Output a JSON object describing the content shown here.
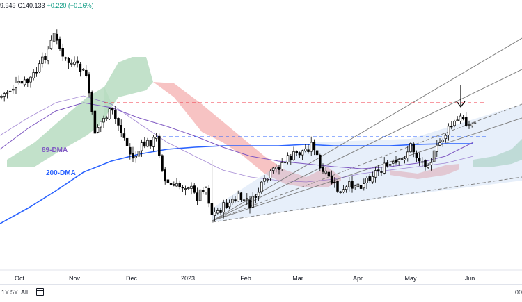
{
  "header": {
    "ohlc_open": "9.949",
    "ohlc_close": "C140.133",
    "ohlc_change": "+0.220 (+0.16%)"
  },
  "toolbar": {
    "range_1y": "1Y",
    "range_5y": "5Y",
    "range_all": "All",
    "calendar_icon": "calendar-icon",
    "time_text": "00"
  },
  "chart_data": {
    "type": "candlestick",
    "x_axis_labels": [
      "Oct",
      "Nov",
      "Dec",
      "2023",
      "Feb",
      "Mar",
      "Apr",
      "May",
      "Jun"
    ],
    "annotations": [
      {
        "text": "89-DMA",
        "color": "#7e57c2"
      },
      {
        "text": "200-DMA",
        "color": "#2962ff"
      }
    ],
    "colors": {
      "candle_up": "#ffffff",
      "candle_down": "#000000",
      "dma_200": "#2962ff",
      "dma_89": "#7e57c2",
      "cloud_bull": "#b7dcc1",
      "cloud_bear": "#f6b9b9",
      "resistance_line": "#f23645",
      "support_line": "#2962ff",
      "channel_lines": "#808080",
      "channel_fill": "#bbd0f0"
    }
  }
}
